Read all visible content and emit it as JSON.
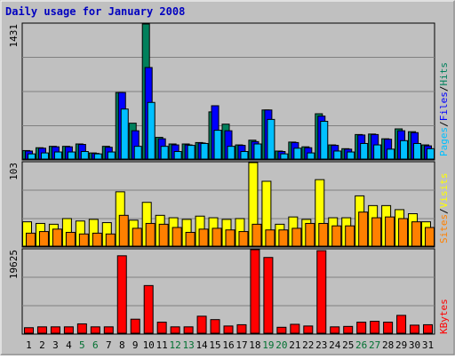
{
  "title": "Daily usage for January 2008",
  "colors": {
    "background": "#c0c0c0",
    "frame": "#ffffff",
    "title": "#0000c0",
    "grid": "#808080",
    "hits": "#00805c",
    "files": "#0000ff",
    "pages": "#00c0ff",
    "visits": "#ffff00",
    "sites": "#ff8000",
    "kbytes": "#ff0000",
    "weekend_label": "#007030",
    "weekday_label": "#000000"
  },
  "legend": {
    "top": [
      {
        "label": "Pages",
        "color": "#00c0ff"
      },
      {
        "label": "Files",
        "color": "#0000ff"
      },
      {
        "label": "Hits",
        "color": "#00805c"
      }
    ],
    "middle": [
      {
        "label": "Sites",
        "color": "#ff8000"
      },
      {
        "label": "Visits",
        "color": "#ffff00"
      }
    ],
    "bottom": [
      {
        "label": "KBytes",
        "color": "#ff0000"
      }
    ]
  },
  "chart_data": {
    "type": "bar",
    "title": "Daily usage for January 2008",
    "categories": [
      "1",
      "2",
      "3",
      "4",
      "5",
      "6",
      "7",
      "8",
      "9",
      "10",
      "11",
      "12",
      "13",
      "14",
      "15",
      "16",
      "17",
      "18",
      "19",
      "20",
      "21",
      "22",
      "23",
      "24",
      "25",
      "26",
      "27",
      "28",
      "29",
      "30",
      "31"
    ],
    "weekend_days": [
      "5",
      "6",
      "12",
      "13",
      "19",
      "20",
      "26",
      "27"
    ],
    "panels": [
      {
        "name": "top",
        "ymax": 1431,
        "ymax_label": "1431",
        "series": [
          {
            "name": "Hits",
            "values": [
              90,
              120,
              135,
              135,
              160,
              65,
              135,
              705,
              380,
              1431,
              230,
              160,
              160,
              175,
              500,
              370,
              150,
              200,
              520,
              85,
              180,
              130,
              480,
              150,
              110,
              260,
              265,
              215,
              320,
              290,
              150
            ]
          },
          {
            "name": "Files",
            "values": [
              85,
              115,
              130,
              130,
              155,
              60,
              125,
              705,
              300,
              970,
              215,
              150,
              150,
              170,
              565,
              300,
              145,
              185,
              520,
              80,
              175,
              120,
              455,
              145,
              105,
              255,
              260,
              210,
              300,
              280,
              140
            ]
          },
          {
            "name": "Pages",
            "values": [
              55,
              65,
              75,
              75,
              80,
              55,
              75,
              530,
              135,
              600,
              135,
              80,
              145,
              165,
              305,
              135,
              80,
              160,
              420,
              55,
              115,
              65,
              400,
              85,
              75,
              165,
              150,
              105,
              195,
              165,
              110
            ]
          }
        ]
      },
      {
        "name": "middle",
        "ymax": 103,
        "ymax_label": "103",
        "series": [
          {
            "name": "Visits",
            "values": [
              30,
              28,
              27,
              34,
              31,
              33,
              29,
              67,
              32,
              54,
              38,
              35,
              33,
              37,
              35,
              33,
              34,
              103,
              80,
              27,
              36,
              33,
              82,
              35,
              35,
              62,
              50,
              50,
              45,
              40,
              30
            ]
          },
          {
            "name": "Sites",
            "values": [
              16,
              18,
              21,
              17,
              15,
              16,
              15,
              38,
              22,
              28,
              27,
              23,
              17,
              21,
              22,
              20,
              18,
              27,
              20,
              20,
              22,
              28,
              28,
              25,
              25,
              42,
              35,
              36,
              34,
              30,
              23
            ]
          }
        ]
      },
      {
        "name": "bottom",
        "ymax": 19625,
        "ymax_label": "19625",
        "series": [
          {
            "name": "KBytes",
            "values": [
              1300,
              1500,
              1500,
              1500,
              2200,
              1500,
              1500,
              18200,
              3300,
              11200,
              2600,
              1500,
              1500,
              4000,
              3200,
              1700,
              2000,
              19625,
              17800,
              1400,
              2100,
              1700,
              19400,
              1500,
              1600,
              2600,
              2800,
              2600,
              4200,
              1900,
              2000
            ]
          }
        ]
      }
    ]
  }
}
